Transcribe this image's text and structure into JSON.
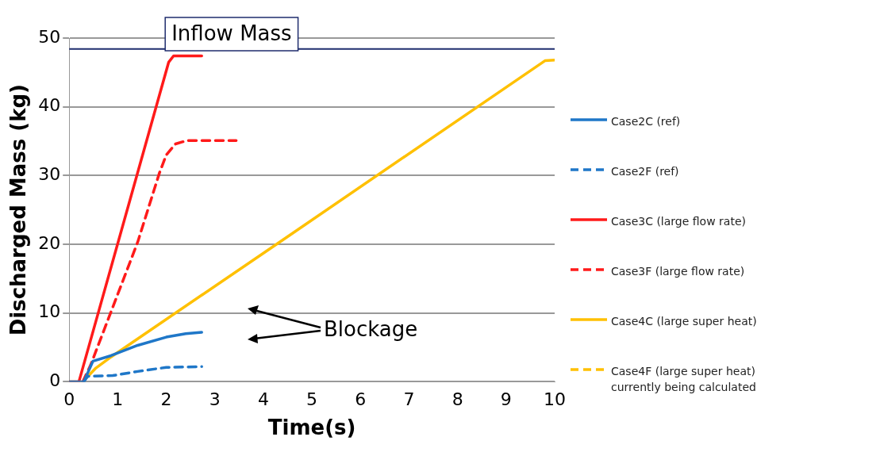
{
  "chart_data": {
    "type": "line",
    "xlabel": "Time(s)",
    "ylabel": "Discharged Mass (kg)",
    "xlim": [
      0,
      10
    ],
    "xticks": [
      0,
      1,
      2,
      3,
      4,
      5,
      6,
      7,
      8,
      9,
      10
    ],
    "ylim": [
      0,
      50
    ],
    "yticks": [
      0,
      10,
      20,
      30,
      40,
      50
    ],
    "grid": "y",
    "legend": "right",
    "marker": "none",
    "ref_lines": [
      {
        "axis": "y",
        "value": 48.4,
        "label": "Inflow Mass",
        "color": "#1f2d6e"
      }
    ],
    "annotations": [
      "Blockage"
    ],
    "series": [
      {
        "name": "Case2C (ref)",
        "color": "#1f77c8",
        "line_style": "solid",
        "x": [
          0,
          0.3,
          0.49,
          0.86,
          1.41,
          2.0,
          2.4,
          2.73
        ],
        "values": [
          0,
          0,
          3.0,
          3.8,
          5.3,
          6.5,
          7.0,
          7.2
        ]
      },
      {
        "name": "Case2F (ref)",
        "color": "#1f77c8",
        "line_style": "dashed",
        "x": [
          0.3,
          0.38,
          0.9,
          1.41,
          2.0,
          2.73
        ],
        "values": [
          0,
          0.8,
          0.9,
          1.5,
          2.1,
          2.2
        ]
      },
      {
        "name": "Case3C (large flow rate)",
        "color": "#ff1a1a",
        "line_style": "solid",
        "x": [
          0,
          0.2,
          2.05,
          2.15,
          2.73
        ],
        "values": [
          0,
          0,
          46.5,
          47.4,
          47.4
        ]
      },
      {
        "name": "Case3F (large flow rate)",
        "color": "#ff1a1a",
        "line_style": "dashed",
        "x": [
          0.28,
          0.44,
          1.41,
          1.86,
          2.0,
          2.19,
          2.43,
          3.44
        ],
        "values": [
          0,
          2.4,
          20.3,
          30.4,
          33.0,
          34.6,
          35.1,
          35.1
        ]
      },
      {
        "name": "Case4C (large super heat)",
        "color": "#ffc000",
        "line_style": "solid",
        "x": [
          0,
          0.28,
          0.55,
          0.86,
          4.33,
          9.8,
          10
        ],
        "values": [
          0,
          0,
          2.0,
          3.6,
          20.3,
          46.7,
          46.8
        ]
      },
      {
        "name": "Case4F (large super heat)\ncurrently being calculated",
        "color": "#ffc000",
        "line_style": "dashed"
      }
    ]
  }
}
